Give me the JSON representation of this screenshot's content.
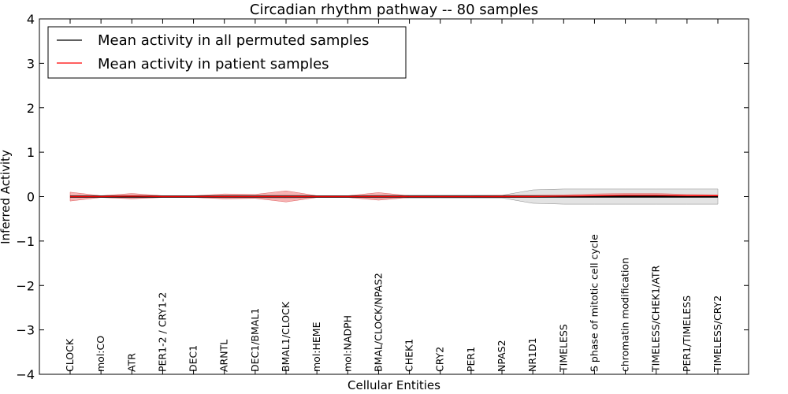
{
  "chart_data": {
    "type": "line",
    "title": "Circadian rhythm pathway -- 80 samples",
    "xlabel": "Cellular Entities",
    "ylabel": "Inferred Activity",
    "ylim": [
      -4,
      4
    ],
    "yticks": [
      4,
      3,
      2,
      1,
      0,
      -1,
      -2,
      -3,
      -4
    ],
    "ytick_labels": [
      "4",
      "3",
      "2",
      "1",
      "0",
      "−1",
      "−2",
      "−3",
      "−4"
    ],
    "grid": false,
    "legend_position": "top-left",
    "categories": [
      "CLOCK",
      "mol:CO",
      "ATR",
      "PER1-2 / CRY1-2",
      "DEC1",
      "ARNTL",
      "DEC1/BMAL1",
      "BMAL1/CLOCK",
      "mol:HEME",
      "mol:NADPH",
      "BMAL/CLOCK/NPAS2",
      "CHEK1",
      "CRY2",
      "PER1",
      "NPAS2",
      "NR1D1",
      "TIMELESS",
      "S phase of mitotic cell cycle",
      "chromatin modification",
      "TIMELESS/CHEK1/ATR",
      "PER1/TIMELESS",
      "TIMELESS/CRY2"
    ],
    "series": [
      {
        "name": "Mean activity in all permuted samples",
        "color": "#000000",
        "values": [
          0,
          0,
          0,
          0,
          0,
          0,
          0,
          0,
          0,
          0,
          0,
          0,
          0,
          0,
          0,
          0,
          0,
          0,
          0,
          0,
          0,
          0
        ],
        "band_upper": [
          0.02,
          0.02,
          0.03,
          0.02,
          0.02,
          0.03,
          0.03,
          0.04,
          0.02,
          0.02,
          0.03,
          0.03,
          0.03,
          0.03,
          0.03,
          0.15,
          0.17,
          0.17,
          0.17,
          0.17,
          0.17,
          0.17
        ],
        "band_lower": [
          -0.02,
          -0.02,
          -0.03,
          -0.02,
          -0.02,
          -0.03,
          -0.03,
          -0.04,
          -0.02,
          -0.02,
          -0.03,
          -0.03,
          -0.03,
          -0.03,
          -0.03,
          -0.15,
          -0.17,
          -0.17,
          -0.17,
          -0.17,
          -0.17,
          -0.17
        ],
        "band_color": "#b0b0b0"
      },
      {
        "name": "Mean activity in patient samples",
        "color": "#ff0000",
        "values": [
          0,
          0,
          0.01,
          0,
          0,
          0,
          0,
          0,
          0,
          0,
          0,
          0,
          0,
          0,
          0,
          0,
          0.01,
          0.02,
          0.03,
          0.03,
          0.02,
          0.02
        ],
        "band_upper": [
          0.1,
          0.02,
          0.07,
          0.02,
          0.02,
          0.06,
          0.05,
          0.13,
          0.02,
          0.02,
          0.09,
          0.02,
          0.02,
          0.02,
          0.03,
          0.03,
          0.04,
          0.06,
          0.07,
          0.07,
          0.05,
          0.04
        ],
        "band_lower": [
          -0.1,
          -0.02,
          -0.05,
          -0.02,
          -0.02,
          -0.05,
          -0.04,
          -0.12,
          -0.02,
          -0.02,
          -0.08,
          -0.02,
          -0.02,
          -0.02,
          -0.02,
          -0.02,
          -0.01,
          0,
          0,
          0,
          0,
          0
        ],
        "band_color": "#f08080"
      }
    ]
  }
}
